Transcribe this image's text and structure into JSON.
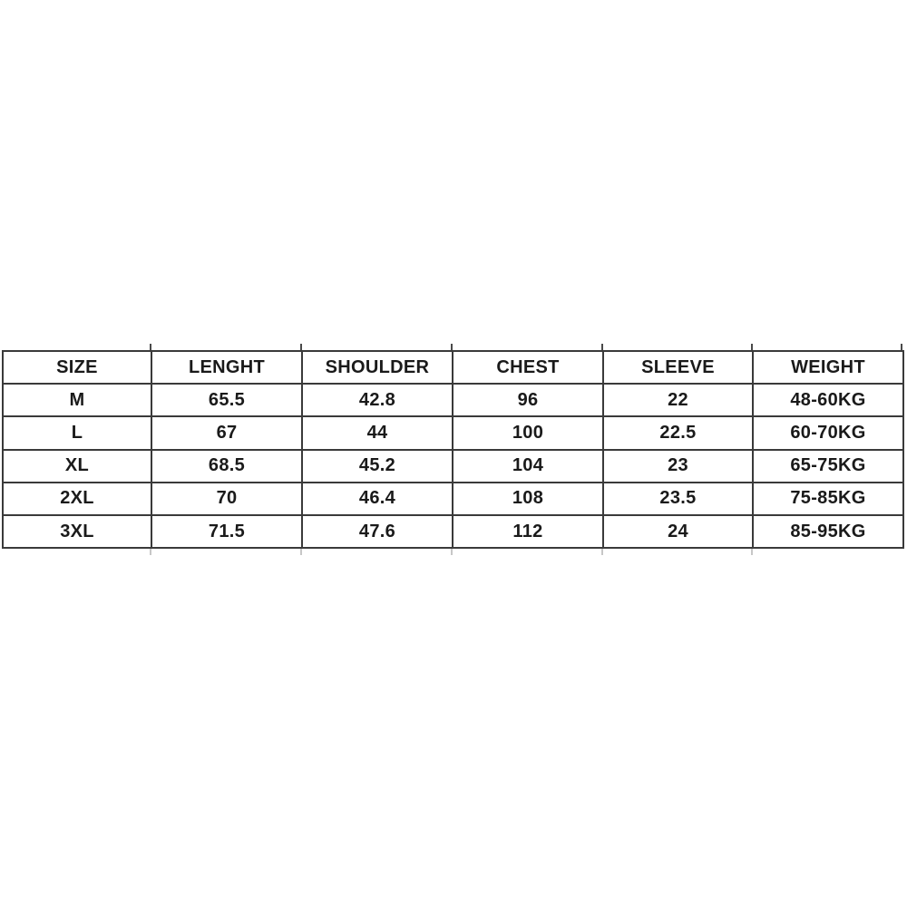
{
  "accent_colors": {
    "border": "#3a3a3a",
    "text": "#1a1a1a",
    "background": "#ffffff"
  },
  "chart_data": {
    "type": "table",
    "title": "",
    "columns": [
      "SIZE",
      "LENGHT",
      "SHOULDER",
      "CHEST",
      "SLEEVE",
      "WEIGHT"
    ],
    "rows": [
      [
        "M",
        "65.5",
        "42.8",
        "96",
        "22",
        "48-60KG"
      ],
      [
        "L",
        "67",
        "44",
        "100",
        "22.5",
        "60-70KG"
      ],
      [
        "XL",
        "68.5",
        "45.2",
        "104",
        "23",
        "65-75KG"
      ],
      [
        "2XL",
        "70",
        "46.4",
        "108",
        "23.5",
        "75-85KG"
      ],
      [
        "3XL",
        "71.5",
        "47.6",
        "112",
        "24",
        "85-95KG"
      ]
    ]
  }
}
